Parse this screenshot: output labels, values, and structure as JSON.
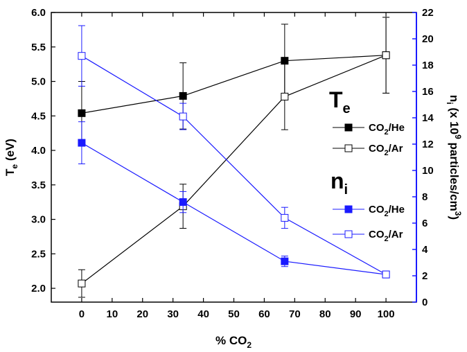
{
  "chart_data": {
    "type": "line",
    "x": [
      0,
      33.3,
      66.7,
      100
    ],
    "xlim": [
      -10,
      110
    ],
    "x_ticks": [
      "0",
      "10",
      "20",
      "30",
      "40",
      "50",
      "60",
      "70",
      "80",
      "90",
      "100"
    ],
    "x_tick_values": [
      0,
      10,
      20,
      30,
      40,
      50,
      60,
      70,
      80,
      90,
      100
    ],
    "xlabel": {
      "main": "% CO",
      "sub": "2"
    },
    "left_axis": {
      "label": {
        "main": "T",
        "sub": "e",
        "rest": " (eV)"
      },
      "lim": [
        1.8,
        6.0
      ],
      "ticks": [
        "2.0",
        "2.5",
        "3.0",
        "3.5",
        "4.0",
        "4.5",
        "5.0",
        "5.5",
        "6.0"
      ],
      "tick_values": [
        2.0,
        2.5,
        3.0,
        3.5,
        4.0,
        4.5,
        5.0,
        5.5,
        6.0
      ],
      "color": "#000000"
    },
    "right_axis": {
      "label": {
        "main": "n",
        "sub": "i",
        "mid": " (x 10",
        "sup": "9",
        "rest": " particles/cm",
        "sup2": "3",
        "end": ")"
      },
      "lim": [
        0,
        22
      ],
      "ticks": [
        "0",
        "2",
        "4",
        "6",
        "8",
        "10",
        "12",
        "14",
        "16",
        "18",
        "20",
        "22"
      ],
      "tick_values": [
        0,
        2,
        4,
        6,
        8,
        10,
        12,
        14,
        16,
        18,
        20,
        22
      ],
      "color": "#1a1aff"
    },
    "series": [
      {
        "name": "CO2/He",
        "group": "Te",
        "axis": "left",
        "color": "#000000",
        "marker": "filled",
        "y": [
          4.54,
          4.79,
          5.3,
          5.38
        ],
        "err": [
          0.46,
          0.48,
          0.53,
          0.55
        ]
      },
      {
        "name": "CO2/Ar",
        "group": "Te",
        "axis": "left",
        "color": "#000000",
        "marker": "open",
        "y": [
          2.07,
          3.19,
          4.78,
          5.38
        ],
        "err": [
          0.2,
          0.32,
          0.48,
          0.55
        ]
      },
      {
        "name": "CO2/He",
        "group": "ni",
        "axis": "right",
        "color": "#1a1aff",
        "marker": "filled",
        "y": [
          12.1,
          7.6,
          3.1,
          2.1
        ],
        "err": [
          1.6,
          0.8,
          0.4,
          0.2
        ]
      },
      {
        "name": "CO2/Ar",
        "group": "ni",
        "axis": "right",
        "color": "#1a1aff",
        "marker": "open",
        "y": [
          18.7,
          14.1,
          6.4,
          2.1
        ],
        "err": [
          2.3,
          1.0,
          0.8,
          0.2
        ]
      }
    ],
    "legend": {
      "placement": "right",
      "groups": [
        {
          "title": {
            "main": "T",
            "sub": "e"
          },
          "color": "#000000",
          "entries": [
            {
              "label": {
                "main": "CO",
                "sub": "2",
                "rest": "/He"
              },
              "marker": "filled"
            },
            {
              "label": {
                "main": "CO",
                "sub": "2",
                "rest": "/Ar"
              },
              "marker": "open"
            }
          ]
        },
        {
          "title": {
            "main": "n",
            "sub": "i"
          },
          "color": "#1a1aff",
          "entries": [
            {
              "label": {
                "main": "CO",
                "sub": "2",
                "rest": "/He"
              },
              "marker": "filled"
            },
            {
              "label": {
                "main": "CO",
                "sub": "2",
                "rest": "/Ar"
              },
              "marker": "open"
            }
          ]
        }
      ]
    },
    "grid": false
  }
}
